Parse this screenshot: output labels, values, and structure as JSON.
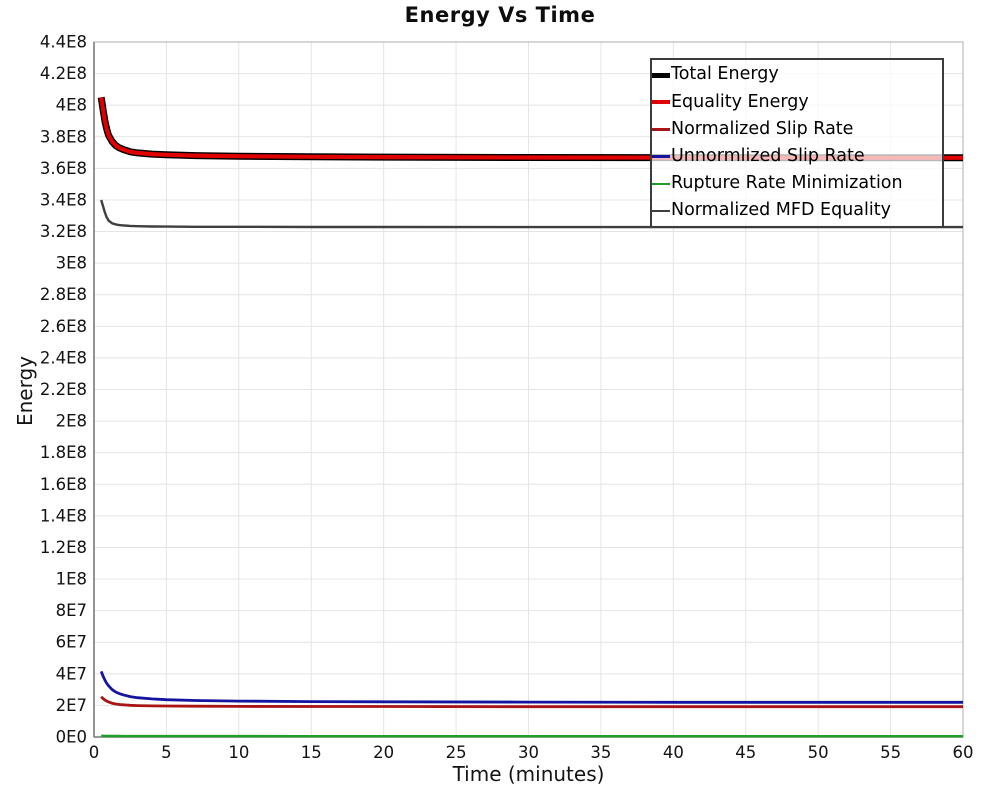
{
  "window": {
    "background": "#ffffff"
  },
  "chart_data": {
    "type": "line",
    "title": "Energy Vs Time",
    "xlabel": "Time (minutes)",
    "ylabel": "Energy",
    "xlim": [
      0,
      60
    ],
    "ylim": [
      0,
      440000000
    ],
    "grid": true,
    "grid_color": "#e4e4e4",
    "axis_color": "#7d7d7d",
    "border_color": "#bcbcbc",
    "legend_position": "top-right",
    "legend_border_color": "#3c3c3c",
    "x_ticks": {
      "values": [
        0,
        5,
        10,
        15,
        20,
        25,
        30,
        35,
        40,
        45,
        50,
        55,
        60
      ],
      "labels": [
        "0",
        "5",
        "10",
        "15",
        "20",
        "25",
        "30",
        "35",
        "40",
        "45",
        "50",
        "55",
        "60"
      ]
    },
    "y_ticks": {
      "values": [
        0,
        20000000,
        40000000,
        60000000,
        80000000,
        100000000,
        120000000,
        140000000,
        160000000,
        180000000,
        200000000,
        220000000,
        240000000,
        260000000,
        280000000,
        300000000,
        320000000,
        340000000,
        360000000,
        380000000,
        400000000,
        420000000,
        440000000
      ],
      "labels": [
        "0E0",
        "2E7",
        "4E7",
        "6E7",
        "8E7",
        "1E8",
        "1.2E8",
        "1.4E8",
        "1.6E8",
        "1.8E8",
        "2E8",
        "2.2E8",
        "2.4E8",
        "2.6E8",
        "2.8E8",
        "3E8",
        "3.2E8",
        "3.4E8",
        "3.6E8",
        "3.8E8",
        "4E8",
        "4.2E8",
        "4.4E8"
      ]
    },
    "x": [
      0.5,
      0.625,
      0.75,
      0.875,
      1,
      1.25,
      1.5,
      1.75,
      2,
      2.5,
      3,
      4,
      5,
      7,
      10,
      15,
      20,
      30,
      40,
      50,
      60
    ],
    "series": [
      {
        "name": "Total Energy",
        "color": "#000000",
        "width": 7,
        "values": [
          405000000,
          397000000,
          390000000,
          385000000,
          381000000,
          377000000,
          374500000,
          373000000,
          372000000,
          370500000,
          369800000,
          369000000,
          368600000,
          368100000,
          367700000,
          367300000,
          367100000,
          366900000,
          366800000,
          366700000,
          366700000
        ]
      },
      {
        "name": "Equality Energy",
        "color": "#e10000",
        "width": 4.2,
        "values": [
          405000000,
          397000000,
          390000000,
          385000000,
          381000000,
          377000000,
          374500000,
          373000000,
          372000000,
          370500000,
          369800000,
          369000000,
          368600000,
          368100000,
          367700000,
          367300000,
          367100000,
          366900000,
          366800000,
          366700000,
          366700000
        ]
      },
      {
        "name": "Normalized Slip Rate",
        "color": "#aa1414",
        "width": 2.8,
        "values": [
          25500000,
          24300000,
          23400000,
          22700000,
          22200000,
          21400000,
          20900000,
          20600000,
          20400000,
          20100000,
          19900000,
          19700000,
          19600000,
          19500000,
          19400000,
          19300000,
          19300000,
          19200000,
          19200000,
          19200000,
          19200000
        ]
      },
      {
        "name": "Unnormlized Slip Rate",
        "color": "#1414a0",
        "width": 2.8,
        "values": [
          41500000,
          38500000,
          36000000,
          34000000,
          32500000,
          30000000,
          28500000,
          27500000,
          26700000,
          25600000,
          24900000,
          24100000,
          23600000,
          23100000,
          22700000,
          22400000,
          22300000,
          22100000,
          22000000,
          22000000,
          22000000
        ]
      },
      {
        "name": "Rupture Rate Minimization",
        "color": "#1ea028",
        "width": 2.4,
        "values": [
          800000,
          750000,
          700000,
          680000,
          660000,
          640000,
          620000,
          610000,
          600000,
          590000,
          580000,
          570000,
          560000,
          550000,
          540000,
          530000,
          520000,
          510000,
          500000,
          500000,
          500000
        ]
      },
      {
        "name": "Normalized MFD Equality",
        "color": "#3f3f3f",
        "width": 2.4,
        "values": [
          340000000,
          336000000,
          332000000,
          329000000,
          327000000,
          325200000,
          324500000,
          324100000,
          323900000,
          323600000,
          323400000,
          323200000,
          323100000,
          323000000,
          323000000,
          322900000,
          322900000,
          322800000,
          322800000,
          322800000,
          322800000
        ]
      }
    ]
  }
}
